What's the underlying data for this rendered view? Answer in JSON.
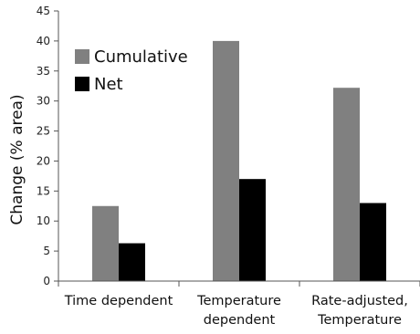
{
  "chart_data": {
    "type": "bar",
    "categories": [
      [
        "Time dependent"
      ],
      [
        "Temperature",
        "dependent"
      ],
      [
        "Rate-adjusted,",
        "Temperature"
      ]
    ],
    "series": [
      {
        "name": "Cumulative",
        "values": [
          12.5,
          40,
          32.2
        ],
        "color": "#808080"
      },
      {
        "name": "Net",
        "values": [
          6.3,
          17,
          13
        ],
        "color": "#000000"
      }
    ],
    "ylabel": "Change (% area)",
    "xlabel": "",
    "ylim": [
      0,
      45
    ],
    "yticks": [
      0,
      5,
      10,
      15,
      20,
      25,
      30,
      35,
      40,
      45
    ],
    "grid": false,
    "legend_position": "top-left"
  }
}
